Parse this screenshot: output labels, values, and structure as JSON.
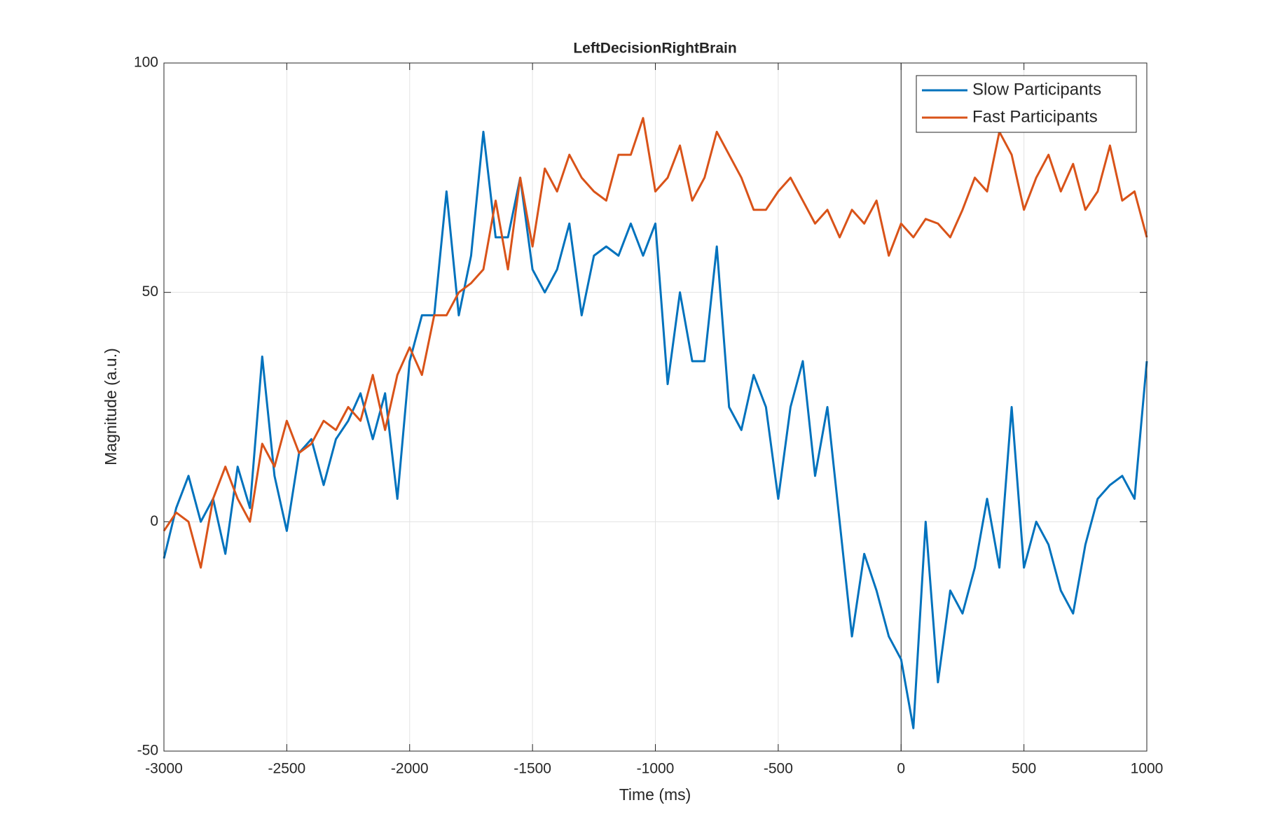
{
  "chart_data": {
    "type": "line",
    "title": "LeftDecisionRightBrain",
    "xlabel": "Time (ms)",
    "ylabel": "Magnitude (a.u.)",
    "x": [
      -3000,
      -2950,
      -2900,
      -2850,
      -2800,
      -2750,
      -2700,
      -2650,
      -2600,
      -2550,
      -2500,
      -2450,
      -2400,
      -2350,
      -2300,
      -2250,
      -2200,
      -2150,
      -2100,
      -2050,
      -2000,
      -1950,
      -1900,
      -1850,
      -1800,
      -1750,
      -1700,
      -1650,
      -1600,
      -1550,
      -1500,
      -1450,
      -1400,
      -1350,
      -1300,
      -1250,
      -1200,
      -1150,
      -1100,
      -1050,
      -1000,
      -950,
      -900,
      -850,
      -800,
      -750,
      -700,
      -650,
      -600,
      -550,
      -500,
      -450,
      -400,
      -350,
      -300,
      -250,
      -200,
      -150,
      -100,
      -50,
      0,
      50,
      100,
      150,
      200,
      250,
      300,
      350,
      400,
      450,
      500,
      550,
      600,
      650,
      700,
      750,
      800,
      850,
      900,
      950,
      1000
    ],
    "series": [
      {
        "name": "Slow Participants",
        "color": "#0072bd",
        "values": [
          -8,
          3,
          10,
          0,
          5,
          -7,
          12,
          3,
          36,
          10,
          -2,
          15,
          18,
          8,
          18,
          22,
          28,
          18,
          28,
          5,
          35,
          45,
          45,
          72,
          45,
          58,
          85,
          62,
          62,
          75,
          55,
          50,
          55,
          65,
          45,
          58,
          60,
          58,
          65,
          58,
          65,
          30,
          50,
          35,
          35,
          60,
          25,
          20,
          32,
          25,
          5,
          25,
          35,
          10,
          25,
          0,
          -25,
          -7,
          -15,
          -25,
          -30,
          -45,
          0,
          -35,
          -15,
          -20,
          -10,
          5,
          -10,
          25,
          -10,
          0,
          -5,
          -15,
          -20,
          -5,
          5,
          8,
          10,
          5,
          35
        ]
      },
      {
        "name": "Fast Participants",
        "color": "#d95319",
        "values": [
          -2,
          2,
          0,
          -10,
          5,
          12,
          5,
          0,
          17,
          12,
          22,
          15,
          17,
          22,
          20,
          25,
          22,
          32,
          20,
          32,
          38,
          32,
          45,
          45,
          50,
          52,
          55,
          70,
          55,
          75,
          60,
          77,
          72,
          80,
          75,
          72,
          70,
          80,
          80,
          88,
          72,
          75,
          82,
          70,
          75,
          85,
          80,
          75,
          68,
          68,
          72,
          75,
          70,
          65,
          68,
          62,
          68,
          65,
          70,
          58,
          65,
          62,
          66,
          65,
          62,
          68,
          75,
          72,
          85,
          80,
          68,
          75,
          80,
          72,
          78,
          68,
          72,
          82,
          70,
          72,
          62
        ]
      }
    ],
    "xlim": [
      -3000,
      1000
    ],
    "xticks": [
      -3000,
      -2500,
      -2000,
      -1500,
      -1000,
      -500,
      0,
      500,
      1000
    ],
    "ylim": [
      -50,
      100
    ],
    "yticks": [
      -50,
      0,
      50,
      100
    ],
    "grid": true,
    "vline": 0,
    "legend": "top-right"
  }
}
